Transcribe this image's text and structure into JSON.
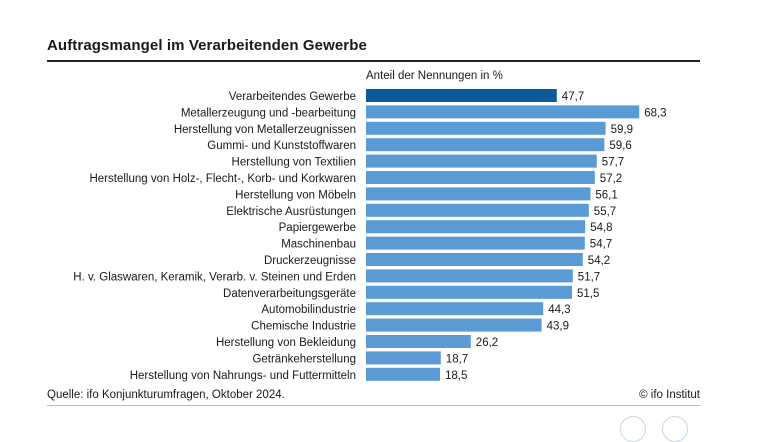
{
  "chart_data": {
    "type": "bar",
    "orientation": "horizontal",
    "title": "Auftragsmangel im Verarbeitenden Gewerbe",
    "ylabel": "Anteil der Nennungen in %",
    "categories": [
      "Verarbeitendes Gewerbe",
      "Metallerzeugung und -bearbeitung",
      "Herstellung von Metallerzeugnissen",
      "Gummi- und Kunststoffwaren",
      "Herstellung von Textilien",
      "Herstellung von Holz-, Flecht-, Korb- und Korkwaren",
      "Herstellung von Möbeln",
      "Elektrische Ausrüstungen",
      "Papiergewerbe",
      "Maschinenbau",
      "Druckerzeugnisse",
      "H. v. Glaswaren, Keramik, Verarb. v. Steinen und Erden",
      "Datenverarbeitungsgeräte",
      "Automobilindustrie",
      "Chemische Industrie",
      "Herstellung von Bekleidung",
      "Getränkeherstellung",
      "Herstellung von Nahrungs- und Futtermitteln"
    ],
    "values": [
      47.7,
      68.3,
      59.9,
      59.6,
      57.7,
      57.2,
      56.1,
      55.7,
      54.8,
      54.7,
      54.2,
      51.7,
      51.5,
      44.3,
      43.9,
      26.2,
      18.7,
      18.5
    ],
    "value_labels": [
      "47,7",
      "68,3",
      "59,9",
      "59,6",
      "57,7",
      "57,2",
      "56,1",
      "55,7",
      "54,8",
      "54,7",
      "54,2",
      "51,7",
      "51,5",
      "44,3",
      "43,9",
      "26,2",
      "18,7",
      "18,5"
    ],
    "highlight_index": 0,
    "colors": {
      "highlight": "#0a5a9c",
      "bar": "#5b9bd5"
    },
    "xlim": [
      0,
      70
    ],
    "grid": false,
    "legend": "none"
  },
  "footer": {
    "source": "Quelle: ifo Konjunkturumfragen, Oktober 2024.",
    "copyright": "© ifo Institut"
  }
}
